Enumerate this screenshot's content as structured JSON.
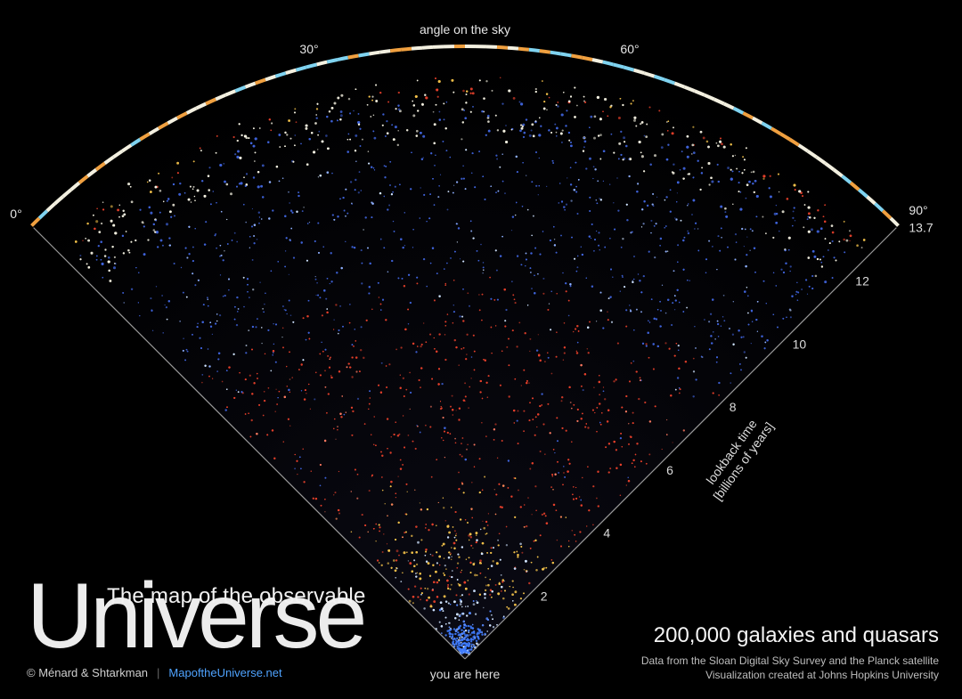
{
  "map": {
    "top_label": "angle on the sky",
    "angle_labels": [
      "0°",
      "30°",
      "60°",
      "90°"
    ],
    "angles_deg": [
      0,
      30,
      60,
      90
    ],
    "time_axis_label_1": "lookback time",
    "time_axis_label_2": "[billions of years]",
    "time_ticks": [
      "2",
      "4",
      "6",
      "8",
      "10",
      "12",
      "13.7"
    ],
    "time_values": [
      2,
      4,
      6,
      8,
      10,
      12,
      13.7
    ],
    "max_time": 13.7,
    "origin_label": "you are here",
    "colors": {
      "near_white": "#cfe3ff",
      "yellow": "#f2c14a",
      "red": "#e5402b",
      "blue": "#3f63d9",
      "edge_white": "#f3f0e0",
      "cmb_orange": "#f0a040",
      "cmb_cyan": "#7fd3f0"
    }
  },
  "title": {
    "line1": "The map of the observable",
    "line2": "Universe"
  },
  "credits": {
    "authors": "© Ménard & Shtarkman",
    "separator": "|",
    "site": "MapoftheUniverse.net"
  },
  "summary": {
    "count_line": "200,000 galaxies and quasars",
    "data_line": "Data from the Sloan Digital Sky Survey and the Planck satellite",
    "viz_line": "Visualization created at Johns Hopkins University"
  }
}
